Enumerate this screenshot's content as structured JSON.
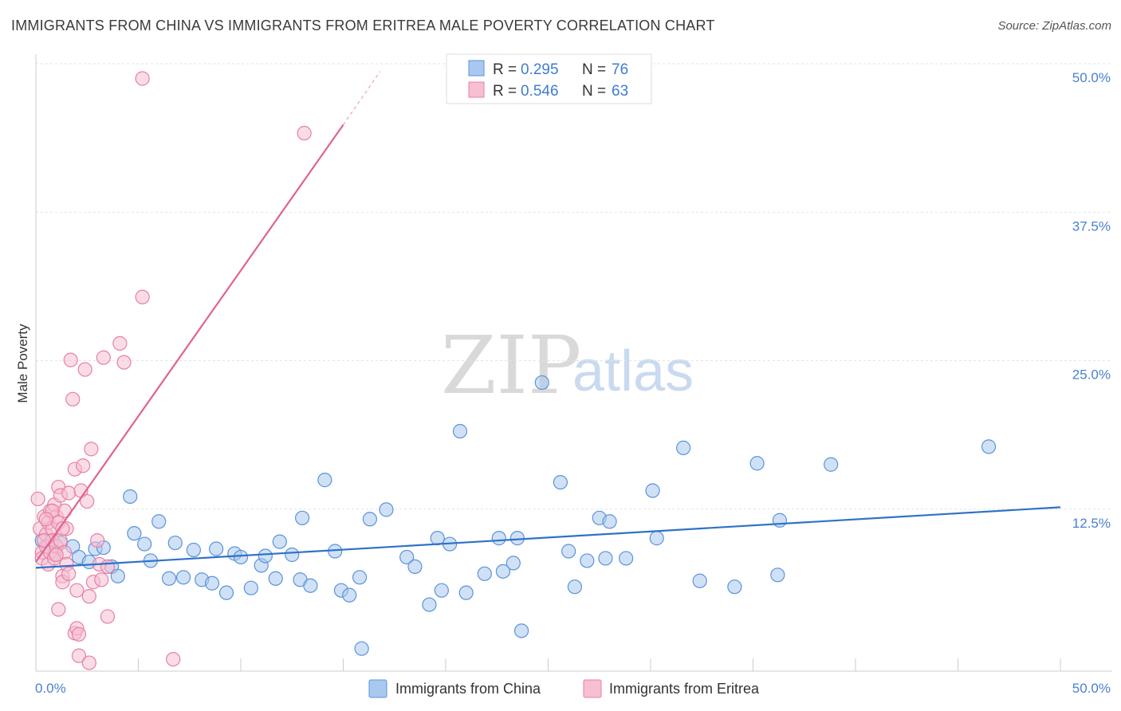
{
  "chart_data": {
    "type": "scatter",
    "title": "IMMIGRANTS FROM CHINA VS IMMIGRANTS FROM ERITREA MALE POVERTY CORRELATION CHART",
    "source": "Source: ZipAtlas.com",
    "xlabel": "",
    "ylabel": "Male Poverty",
    "xlim": [
      0,
      50
    ],
    "ylim": [
      0,
      50
    ],
    "x_tick_labels": [
      "0.0%",
      "50.0%"
    ],
    "y_ticks": [
      {
        "value": 12.5,
        "label": "12.5%"
      },
      {
        "value": 25.0,
        "label": "25.0%"
      },
      {
        "value": 37.5,
        "label": "37.5%"
      },
      {
        "value": 50.0,
        "label": "50.0%"
      }
    ],
    "watermark": {
      "part1": "ZIP",
      "part2": "atlas"
    },
    "legend": {
      "entries": [
        {
          "r_label": "R =",
          "r_value": "0.295",
          "n_label": "N =",
          "n_value": "76"
        },
        {
          "r_label": "R =",
          "r_value": "0.546",
          "n_label": "N =",
          "n_value": "63"
        }
      ]
    },
    "series": [
      {
        "name": "Immigrants from China",
        "color": "#5a93dc",
        "fill": "#a9c8ef",
        "line_color": "#2f72c8",
        "trend": {
          "x0": 0,
          "y0": 8.7,
          "x1": 50,
          "y1": 13.8
        },
        "points": [
          [
            0.3,
            11.0
          ],
          [
            0.6,
            10.5
          ],
          [
            0.9,
            9.8
          ],
          [
            1.2,
            10.8
          ],
          [
            1.8,
            10.5
          ],
          [
            2.1,
            9.6
          ],
          [
            2.6,
            9.2
          ],
          [
            2.9,
            10.3
          ],
          [
            3.3,
            10.4
          ],
          [
            3.7,
            8.8
          ],
          [
            4.0,
            8.0
          ],
          [
            4.6,
            14.7
          ],
          [
            4.8,
            11.6
          ],
          [
            5.3,
            10.7
          ],
          [
            5.6,
            9.3
          ],
          [
            6.0,
            12.6
          ],
          [
            6.5,
            7.8
          ],
          [
            6.8,
            10.8
          ],
          [
            7.2,
            7.9
          ],
          [
            7.7,
            10.2
          ],
          [
            8.1,
            7.7
          ],
          [
            8.6,
            7.4
          ],
          [
            8.8,
            10.3
          ],
          [
            9.3,
            6.6
          ],
          [
            9.7,
            9.9
          ],
          [
            10.0,
            9.6
          ],
          [
            10.5,
            7.0
          ],
          [
            11.0,
            8.9
          ],
          [
            11.2,
            9.7
          ],
          [
            11.7,
            7.8
          ],
          [
            11.9,
            10.9
          ],
          [
            12.5,
            9.8
          ],
          [
            12.9,
            7.7
          ],
          [
            13.0,
            12.9
          ],
          [
            13.4,
            7.2
          ],
          [
            14.1,
            16.1
          ],
          [
            14.6,
            10.1
          ],
          [
            14.9,
            6.8
          ],
          [
            15.3,
            6.4
          ],
          [
            15.8,
            7.9
          ],
          [
            15.9,
            1.9
          ],
          [
            16.3,
            12.8
          ],
          [
            17.1,
            13.6
          ],
          [
            18.1,
            9.6
          ],
          [
            18.5,
            8.8
          ],
          [
            19.2,
            5.6
          ],
          [
            19.6,
            11.2
          ],
          [
            19.8,
            6.8
          ],
          [
            20.2,
            10.7
          ],
          [
            20.7,
            20.2
          ],
          [
            21.0,
            6.6
          ],
          [
            21.9,
            8.2
          ],
          [
            22.6,
            11.2
          ],
          [
            22.8,
            8.4
          ],
          [
            23.3,
            9.1
          ],
          [
            23.5,
            11.2
          ],
          [
            23.7,
            3.4
          ],
          [
            24.7,
            24.3
          ],
          [
            25.6,
            15.9
          ],
          [
            26.0,
            10.1
          ],
          [
            26.3,
            7.1
          ],
          [
            26.9,
            9.3
          ],
          [
            27.5,
            12.9
          ],
          [
            27.8,
            9.5
          ],
          [
            28.0,
            12.6
          ],
          [
            28.8,
            9.5
          ],
          [
            30.1,
            15.2
          ],
          [
            30.3,
            11.2
          ],
          [
            31.6,
            18.8
          ],
          [
            32.4,
            7.6
          ],
          [
            34.1,
            7.1
          ],
          [
            35.2,
            17.5
          ],
          [
            36.2,
            8.1
          ],
          [
            36.3,
            12.7
          ],
          [
            38.8,
            17.4
          ],
          [
            46.5,
            18.9
          ]
        ]
      },
      {
        "name": "Immigrants from Eritrea",
        "color": "#e97fa3",
        "fill": "#f6bfd2",
        "line_color": "#e0638e",
        "trend": {
          "x0": 0,
          "y0": 9.2,
          "x1": 15,
          "y1": 46.0
        },
        "trend_dashed": {
          "x0": 15,
          "y0": 46.0,
          "x1": 16.8,
          "y1": 50.5
        },
        "points": [
          [
            0.1,
            14.5
          ],
          [
            0.2,
            12.0
          ],
          [
            0.3,
            10.0
          ],
          [
            0.3,
            9.5
          ],
          [
            0.4,
            13.0
          ],
          [
            0.5,
            11.5
          ],
          [
            0.5,
            10.5
          ],
          [
            0.6,
            12.5
          ],
          [
            0.6,
            9.0
          ],
          [
            0.7,
            13.5
          ],
          [
            0.7,
            10.0
          ],
          [
            0.8,
            12.0
          ],
          [
            0.8,
            11.0
          ],
          [
            0.9,
            14.0
          ],
          [
            0.9,
            9.5
          ],
          [
            1.0,
            13.0
          ],
          [
            1.0,
            10.5
          ],
          [
            1.1,
            15.5
          ],
          [
            1.1,
            12.5
          ],
          [
            1.1,
            5.2
          ],
          [
            1.2,
            14.8
          ],
          [
            1.2,
            11.0
          ],
          [
            1.3,
            8.0
          ],
          [
            1.3,
            7.5
          ],
          [
            1.4,
            13.5
          ],
          [
            1.4,
            10.0
          ],
          [
            1.5,
            12.0
          ],
          [
            1.5,
            9.0
          ],
          [
            1.6,
            15.0
          ],
          [
            1.6,
            8.2
          ],
          [
            1.7,
            26.2
          ],
          [
            1.8,
            22.9
          ],
          [
            1.9,
            3.2
          ],
          [
            1.9,
            17.0
          ],
          [
            2.0,
            3.6
          ],
          [
            2.0,
            6.8
          ],
          [
            2.1,
            3.1
          ],
          [
            2.1,
            1.3
          ],
          [
            2.2,
            15.2
          ],
          [
            2.3,
            17.3
          ],
          [
            2.4,
            25.4
          ],
          [
            2.5,
            14.3
          ],
          [
            2.6,
            0.7
          ],
          [
            2.6,
            6.3
          ],
          [
            2.7,
            18.7
          ],
          [
            2.8,
            7.5
          ],
          [
            3.0,
            11.0
          ],
          [
            3.1,
            9.0
          ],
          [
            3.2,
            7.7
          ],
          [
            3.3,
            26.4
          ],
          [
            3.5,
            4.6
          ],
          [
            3.5,
            8.8
          ],
          [
            4.1,
            27.6
          ],
          [
            4.3,
            26.0
          ],
          [
            5.2,
            31.5
          ],
          [
            5.2,
            49.9
          ],
          [
            6.7,
            1.0
          ],
          [
            13.1,
            45.3
          ],
          [
            0.4,
            11.0
          ],
          [
            0.8,
            13.5
          ],
          [
            1.3,
            12.0
          ],
          [
            0.5,
            12.8
          ],
          [
            1.0,
            9.8
          ]
        ]
      }
    ]
  }
}
